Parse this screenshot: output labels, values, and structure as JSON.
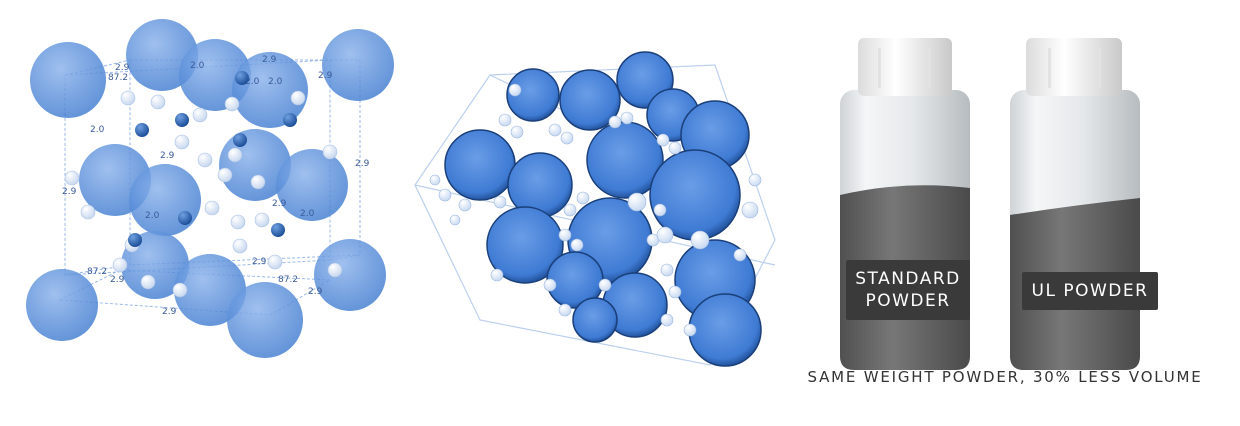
{
  "lattice": {
    "measure_labels": [
      "2.9",
      "87.2",
      "2.0",
      "2.9",
      "2.0",
      "2.0",
      "2.9",
      "2.0",
      "2.9",
      "2.9",
      "2.0",
      "2.9",
      "2.0",
      "2.9",
      "87.2",
      "2.9",
      "87.2",
      "2.9",
      "2.9",
      "2.9"
    ]
  },
  "vials": {
    "standard_label_line1": "STANDARD",
    "standard_label_line2": "POWDER",
    "ul_label": "UL POWDER"
  },
  "caption": "SAME WEIGHT POWDER, 30% LESS VOLUME",
  "colors": {
    "sphere_blue": "#4a85d6",
    "label_bg": "#3a3a3a",
    "powder_gray": "#6b6b6b"
  }
}
